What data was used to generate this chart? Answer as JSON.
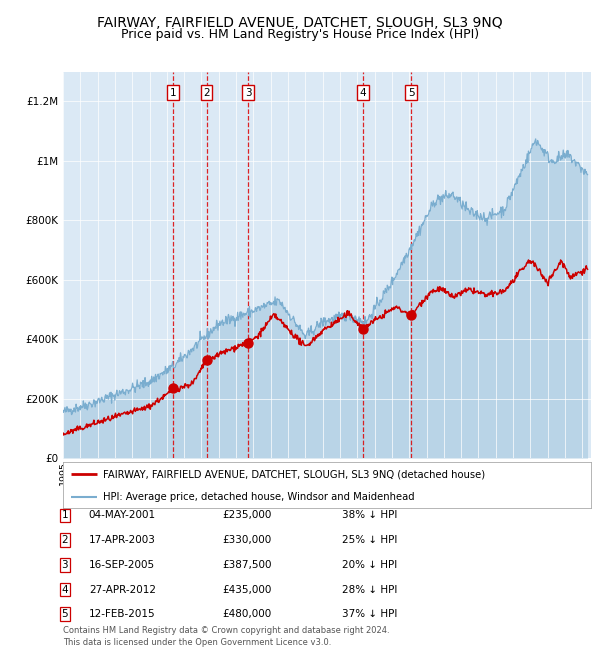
{
  "title": "FAIRWAY, FAIRFIELD AVENUE, DATCHET, SLOUGH, SL3 9NQ",
  "subtitle": "Price paid vs. HM Land Registry's House Price Index (HPI)",
  "title_fontsize": 10,
  "subtitle_fontsize": 9,
  "legend_line1": "FAIRWAY, FAIRFIELD AVENUE, DATCHET, SLOUGH, SL3 9NQ (detached house)",
  "legend_line2": "HPI: Average price, detached house, Windsor and Maidenhead",
  "red_color": "#cc0000",
  "blue_color": "#7aadcf",
  "blue_fill_alpha": 0.35,
  "background_color": "#dbe9f5",
  "footer": "Contains HM Land Registry data © Crown copyright and database right 2024.\nThis data is licensed under the Open Government Licence v3.0.",
  "sales": [
    {
      "num": 1,
      "date": "04-MAY-2001",
      "date_x": 2001.36,
      "price": 235000
    },
    {
      "num": 2,
      "date": "17-APR-2003",
      "date_x": 2003.29,
      "price": 330000
    },
    {
      "num": 3,
      "date": "16-SEP-2005",
      "date_x": 2005.71,
      "price": 387500
    },
    {
      "num": 4,
      "date": "27-APR-2012",
      "date_x": 2012.32,
      "price": 435000
    },
    {
      "num": 5,
      "date": "12-FEB-2015",
      "date_x": 2015.12,
      "price": 480000
    }
  ],
  "table_rows": [
    {
      "num": 1,
      "date": "04-MAY-2001",
      "price": "£235,000",
      "pct": "38% ↓ HPI"
    },
    {
      "num": 2,
      "date": "17-APR-2003",
      "price": "£330,000",
      "pct": "25% ↓ HPI"
    },
    {
      "num": 3,
      "date": "16-SEP-2005",
      "price": "£387,500",
      "pct": "20% ↓ HPI"
    },
    {
      "num": 4,
      "date": "27-APR-2012",
      "price": "£435,000",
      "pct": "28% ↓ HPI"
    },
    {
      "num": 5,
      "date": "12-FEB-2015",
      "price": "£480,000",
      "pct": "37% ↓ HPI"
    }
  ],
  "ylim": [
    0,
    1300000
  ],
  "xlim_start": 1995.0,
  "xlim_end": 2025.5
}
